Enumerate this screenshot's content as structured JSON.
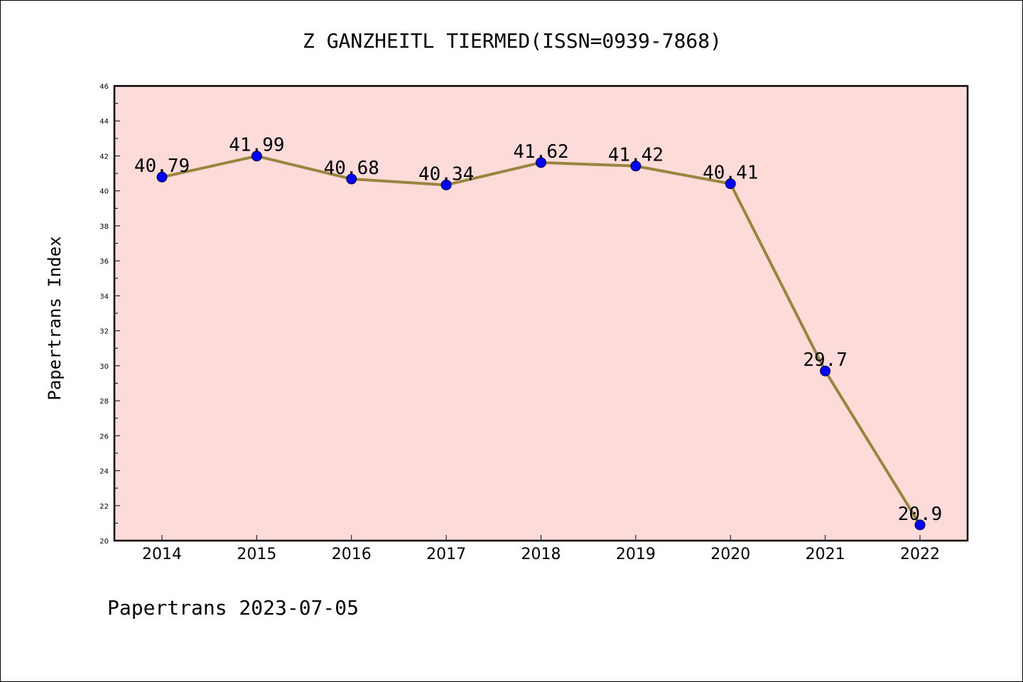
{
  "chart_data": {
    "type": "line",
    "title": "Z GANZHEITL TIERMED(ISSN=0939-7868)",
    "ylabel": "Papertrans Index",
    "xlabel": "",
    "footer": "Papertrans 2023-07-05",
    "categories": [
      "2014",
      "2015",
      "2016",
      "2017",
      "2018",
      "2019",
      "2020",
      "2021",
      "2022"
    ],
    "series": [
      {
        "values": [
          40.79,
          41.99,
          40.68,
          40.34,
          41.62,
          41.42,
          40.41,
          29.7,
          20.9
        ],
        "labels": [
          "40.79",
          "41.99",
          "40.68",
          "40.34",
          "41.62",
          "41.42",
          "40.41",
          "29.7",
          "20.9"
        ]
      }
    ],
    "ylim": [
      20,
      46
    ],
    "yticks": [
      "20",
      "22",
      "24",
      "26",
      "28",
      "30",
      "32",
      "34",
      "36",
      "38",
      "40",
      "42",
      "44",
      "46"
    ],
    "grid": false,
    "colors": {
      "plot_background": "#fddbd9",
      "line": "#9a8540",
      "marker": "#0000ff",
      "axes": "#000000"
    }
  }
}
